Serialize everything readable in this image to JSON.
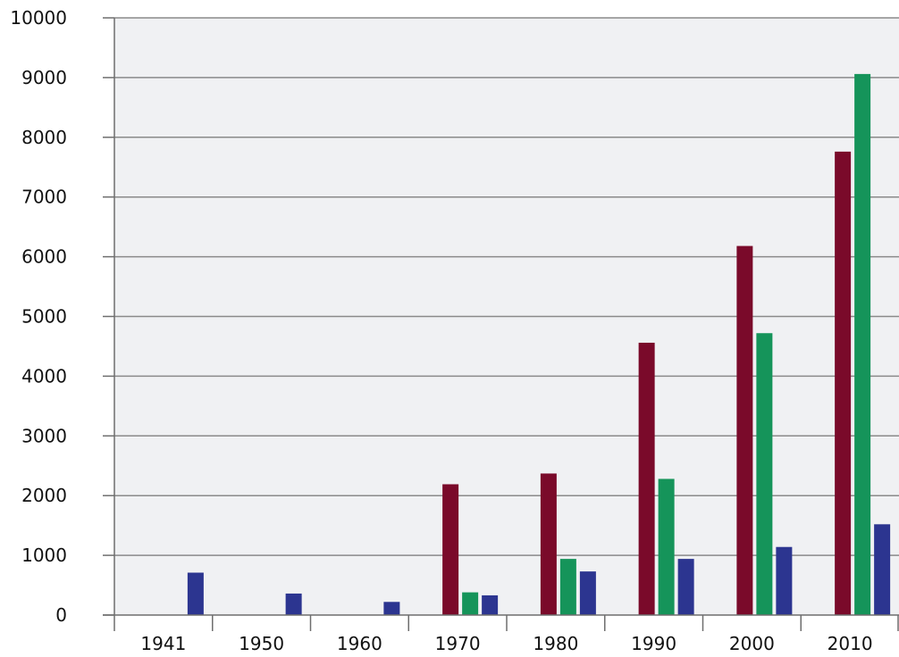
{
  "chart_data": {
    "type": "bar",
    "title": "",
    "xlabel": "",
    "ylabel": "",
    "categories": [
      "1941",
      "1950",
      "1960",
      "1970",
      "1980",
      "1990",
      "2000",
      "2010"
    ],
    "ylim": [
      0,
      10000
    ],
    "yticks": [
      0,
      1000,
      2000,
      3000,
      4000,
      5000,
      6000,
      7000,
      8000,
      9000,
      10000
    ],
    "grid": true,
    "legend": "none",
    "series": [
      {
        "color": "#7a0a2a",
        "values": [
          null,
          null,
          null,
          2190,
          2370,
          4560,
          6180,
          7760
        ]
      },
      {
        "color": "#15945a",
        "values": [
          null,
          null,
          null,
          380,
          940,
          2280,
          4720,
          9060
        ]
      },
      {
        "color": "#2c3590",
        "values": [
          710,
          360,
          220,
          330,
          730,
          940,
          1140,
          1520
        ]
      }
    ],
    "colors": {
      "plot_background": "#f0f1f3",
      "gridline": "#8a8a8a",
      "axis": "#6e6e6e"
    }
  }
}
